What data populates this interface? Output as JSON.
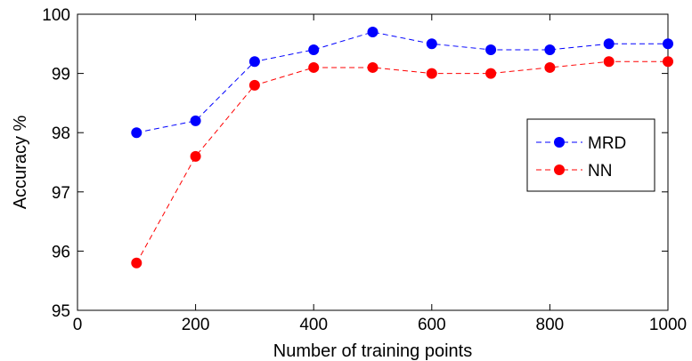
{
  "chart_data": {
    "type": "line",
    "title": "",
    "xlabel": "Number of training points",
    "ylabel": "Accuracy %",
    "xlim": [
      0,
      1000
    ],
    "ylim": [
      95,
      100
    ],
    "xticks": [
      0,
      200,
      400,
      600,
      800,
      1000
    ],
    "yticks": [
      95,
      96,
      97,
      98,
      99,
      100
    ],
    "xtick_labels": [
      "0",
      "200",
      "400",
      "600",
      "800",
      "1000"
    ],
    "ytick_labels": [
      "95",
      "96",
      "97",
      "98",
      "99",
      "100"
    ],
    "grid": false,
    "legend_position": "right",
    "x": [
      100,
      200,
      300,
      400,
      500,
      600,
      700,
      800,
      900,
      1000
    ],
    "series": [
      {
        "name": "MRD",
        "color": "#0000ff",
        "line_style": "dashed",
        "marker": "circle",
        "values": [
          98.0,
          98.2,
          99.2,
          99.4,
          99.7,
          99.5,
          99.4,
          99.4,
          99.5,
          99.5
        ]
      },
      {
        "name": "NN",
        "color": "#ff0000",
        "line_style": "dashed",
        "marker": "circle",
        "values": [
          95.8,
          97.6,
          98.8,
          99.1,
          99.1,
          99.0,
          99.0,
          99.1,
          99.2,
          99.2
        ]
      }
    ]
  }
}
